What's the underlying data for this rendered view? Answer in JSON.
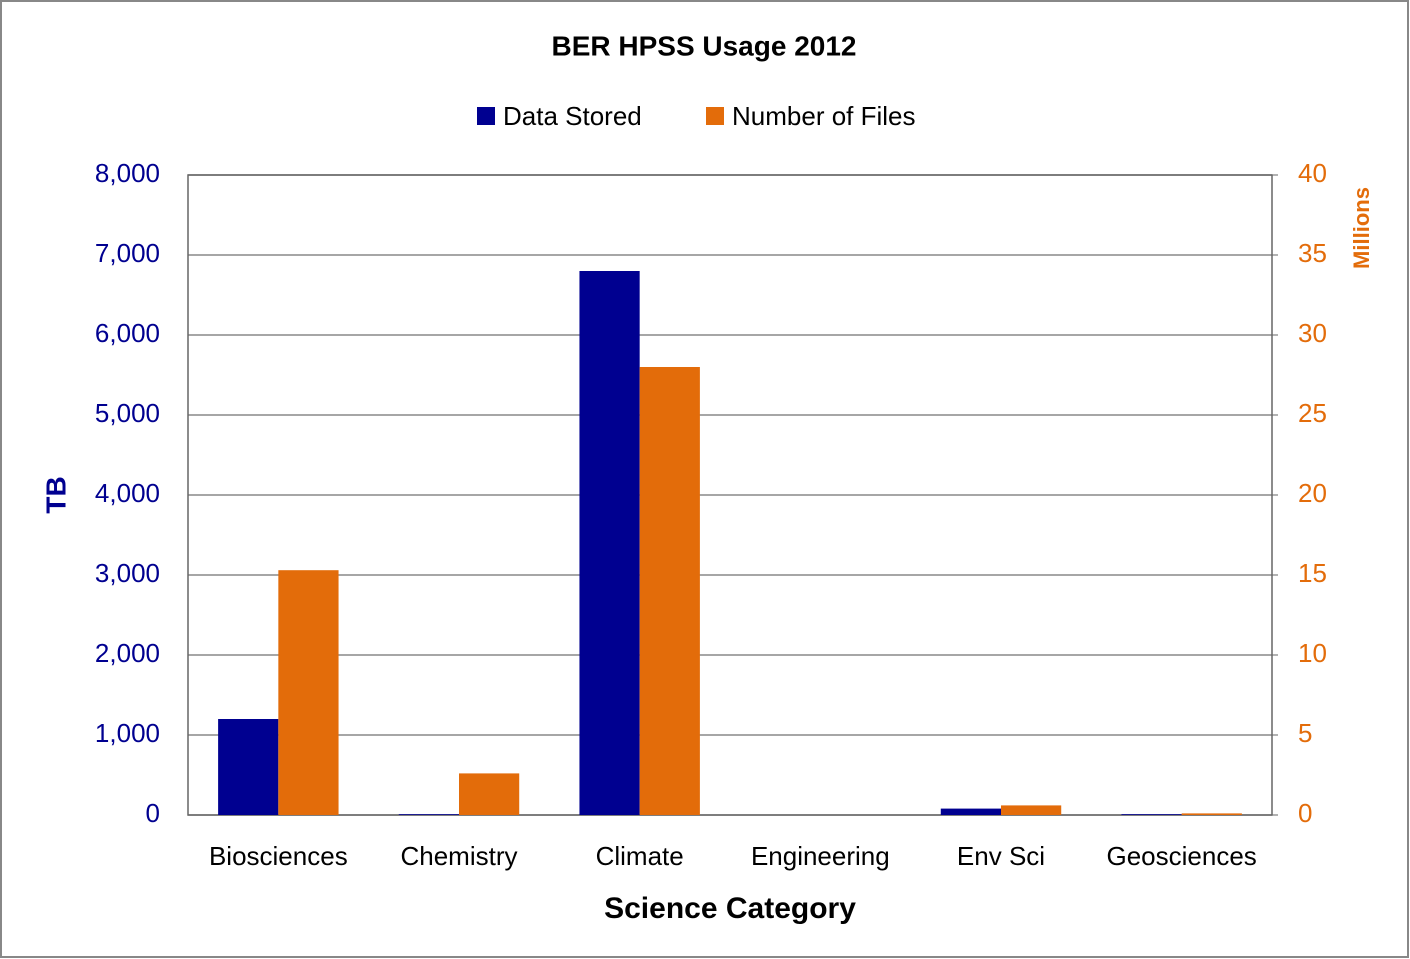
{
  "chart_data": {
    "type": "bar",
    "title": "BER HPSS Usage 2012",
    "x_label": "Science Category",
    "y_label": "TB",
    "y2_label": "Millions",
    "categories": [
      "Biosciences",
      "Chemistry",
      "Climate",
      "Engineering",
      "Env Sci",
      "Geosciences"
    ],
    "series": [
      {
        "name": "Data Stored",
        "color": "#000090",
        "values": [
          1200,
          10,
          6800,
          0,
          80,
          10
        ]
      },
      {
        "name": "Number of Files",
        "color": "#e36c0a",
        "axis": "y2",
        "values": [
          15.3,
          2.6,
          28,
          0,
          0.6,
          0.1
        ]
      }
    ],
    "ylim": [
      0,
      8000
    ],
    "yticks": [
      0,
      {
        "value": 1000,
        "label": "1,000"
      },
      {
        "value": 2000,
        "label": "2,000"
      },
      {
        "value": 3000,
        "label": "3,000"
      },
      {
        "value": 4000,
        "label": "4,000"
      },
      {
        "value": 5000,
        "label": "5,000"
      },
      {
        "value": 6000,
        "label": "6,000"
      },
      {
        "value": 7000,
        "label": "7,000"
      },
      {
        "value": 8000,
        "label": "8,000"
      }
    ],
    "y2lim": [
      0,
      40
    ],
    "y2ticks": [
      0,
      5,
      10,
      15,
      20,
      25,
      30,
      35,
      40
    ],
    "grid": true,
    "legend": "top"
  }
}
